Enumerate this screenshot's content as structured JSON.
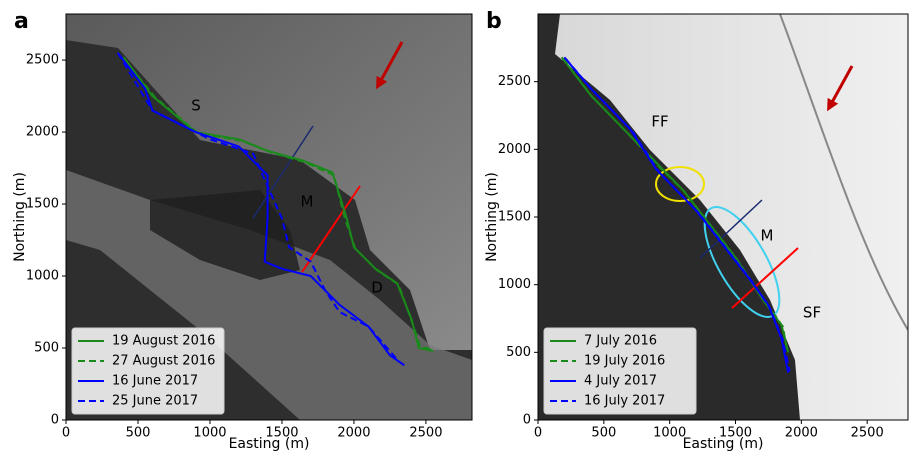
{
  "chart_data": [
    {
      "type": "line",
      "panel_label": "a",
      "xlabel": "Easting (m)",
      "ylabel": "Northing (m)",
      "xlim": [
        0,
        2820
      ],
      "ylim": [
        0,
        2820
      ],
      "xticks": [
        0,
        500,
        1000,
        1500,
        2000,
        2500
      ],
      "yticks": [
        0,
        500,
        1000,
        1500,
        2000,
        2500
      ],
      "legend": "lower left",
      "annotations": [
        {
          "text": "S",
          "color": "#1a2a70"
        },
        {
          "text": "M",
          "color": "#2e6b2e"
        },
        {
          "text": "D",
          "color": "#ff0000"
        }
      ],
      "series": [
        {
          "name": "19 August 2016",
          "color": "#1a8a1a",
          "linestyle": "solid",
          "x": [
            400,
            600,
            900,
            1200,
            1400,
            1650,
            1850,
            1950,
            2000,
            2150,
            2300,
            2400,
            2450,
            2550
          ],
          "y": [
            2520,
            2250,
            2000,
            1950,
            1870,
            1800,
            1720,
            1400,
            1200,
            1050,
            950,
            700,
            500,
            480
          ]
        },
        {
          "name": "27 August 2016",
          "color": "#1a8a1a",
          "linestyle": "dashed",
          "x": [
            400,
            620,
            920,
            1220,
            1420,
            1660,
            1860,
            1940,
            2010,
            2160,
            2310,
            2400,
            2460,
            2540
          ],
          "y": [
            2510,
            2240,
            1990,
            1940,
            1860,
            1790,
            1700,
            1390,
            1190,
            1040,
            940,
            690,
            510,
            490
          ]
        },
        {
          "name": "16 June 2017",
          "color": "#0000ff",
          "linestyle": "solid",
          "x": [
            360,
            550,
            600,
            900,
            1200,
            1400,
            1400,
            1380,
            1500,
            1700,
            1900,
            2100,
            2250,
            2350
          ],
          "y": [
            2550,
            2300,
            2150,
            2000,
            1900,
            1700,
            1400,
            1100,
            1050,
            1000,
            800,
            650,
            450,
            380
          ]
        },
        {
          "name": "25 June 2017",
          "color": "#0000ff",
          "linestyle": "dashed",
          "x": [
            360,
            600,
            1000,
            1300,
            1500,
            1550,
            1700,
            1800,
            1900,
            2100,
            2300
          ],
          "y": [
            2550,
            2150,
            1950,
            1850,
            1400,
            1200,
            1100,
            900,
            750,
            650,
            420
          ]
        }
      ]
    },
    {
      "type": "line",
      "panel_label": "b",
      "xlabel": "Easting (m)",
      "ylabel": "Northing (m)",
      "xlim": [
        0,
        2810
      ],
      "ylim": [
        0,
        3000
      ],
      "xticks": [
        0,
        500,
        1000,
        1500,
        2000,
        2500
      ],
      "yticks": [
        0,
        500,
        1000,
        1500,
        2000,
        2500
      ],
      "legend": "lower left",
      "annotations": [
        {
          "text": "FF",
          "color": "#1a2a70"
        },
        {
          "text": "M",
          "color": "#2e6b2e"
        },
        {
          "text": "SF",
          "color": "#ff0000"
        }
      ],
      "series": [
        {
          "name": "7 July 2016",
          "color": "#1a8a1a",
          "linestyle": "solid",
          "x": [
            180,
            400,
            700,
            900,
            1100,
            1300,
            1500,
            1700,
            1850,
            1900
          ],
          "y": [
            2680,
            2400,
            2100,
            1900,
            1700,
            1450,
            1200,
            900,
            700,
            500
          ]
        },
        {
          "name": "19 July 2016",
          "color": "#1a8a1a",
          "linestyle": "dashed",
          "x": [
            190,
            410,
            710,
            910,
            1110,
            1310,
            1510,
            1710,
            1860,
            1890
          ],
          "y": [
            2670,
            2390,
            2090,
            1880,
            1690,
            1440,
            1190,
            890,
            690,
            520
          ]
        },
        {
          "name": "4 July 2017",
          "color": "#0000ff",
          "linestyle": "solid",
          "x": [
            200,
            400,
            700,
            900,
            1050,
            1200,
            1400,
            1600,
            1750,
            1850,
            1900
          ],
          "y": [
            2680,
            2450,
            2150,
            1850,
            1700,
            1550,
            1300,
            1050,
            850,
            600,
            350
          ]
        },
        {
          "name": "16 July 2017",
          "color": "#0000ff",
          "linestyle": "dashed",
          "x": [
            210,
            420,
            720,
            920,
            1070,
            1220,
            1420,
            1620,
            1760,
            1860,
            1910
          ],
          "y": [
            2670,
            2430,
            2130,
            1830,
            1680,
            1530,
            1280,
            1030,
            830,
            590,
            360
          ]
        }
      ]
    }
  ]
}
